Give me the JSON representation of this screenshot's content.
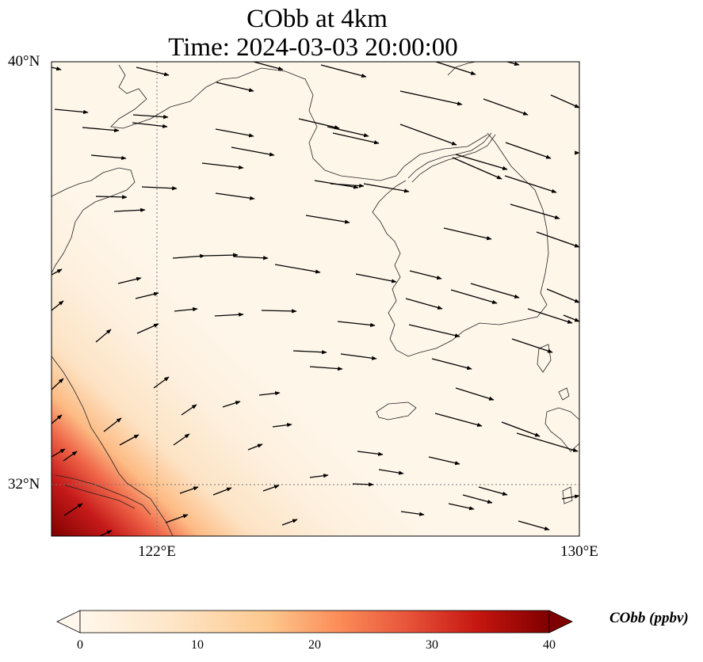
{
  "title_line1": "CObb at 4km",
  "title_line2": "Time: 2024-03-03 20:00:00",
  "map": {
    "lon_range": [
      118.7,
      130.0
    ],
    "lat_range": [
      31.0,
      40.0
    ],
    "lat_labels": [
      "40°N",
      "32°N"
    ],
    "lon_labels": [
      "122°E",
      "130°E"
    ],
    "gridline_lon": 122,
    "gridline_lat": 32
  },
  "colorbar": {
    "label": "CObb (ppbv)",
    "ticks": [
      "0",
      "10",
      "20",
      "30",
      "40"
    ],
    "min": 0,
    "max": 40,
    "colormap": "OrRd"
  }
}
